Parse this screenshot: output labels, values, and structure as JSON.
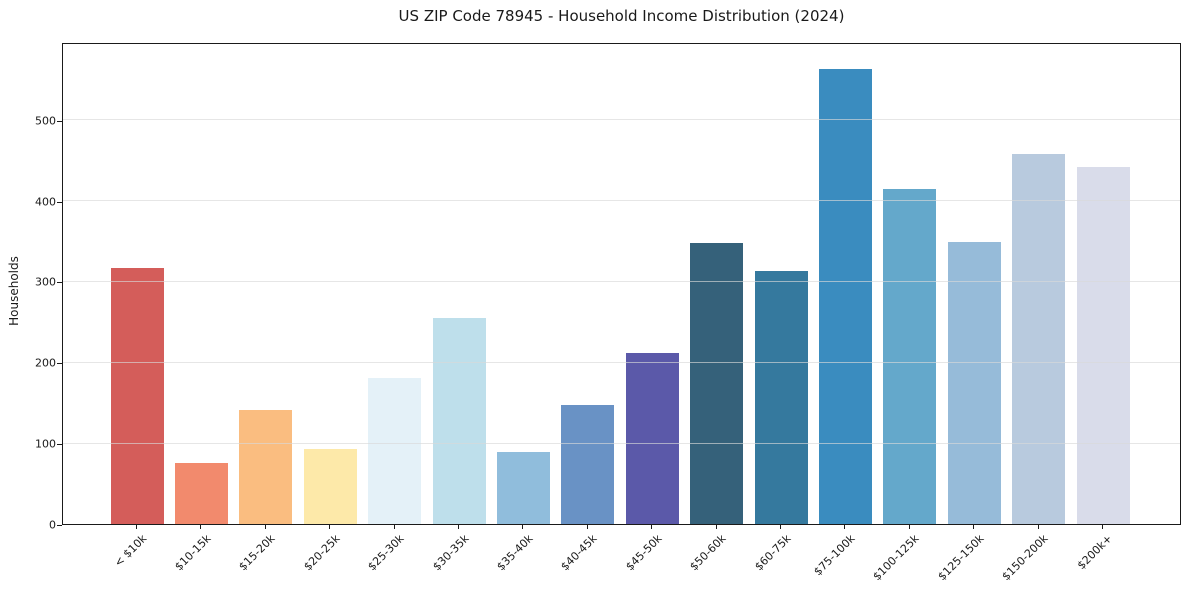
{
  "chart_data": {
    "type": "bar",
    "title": "US ZIP Code 78945 - Household Income Distribution (2024)",
    "xlabel": "",
    "ylabel": "Households",
    "categories": [
      "< $10k",
      "$10-15k",
      "$15-20k",
      "$20-25k",
      "$25-30k",
      "$30-35k",
      "$35-40k",
      "$40-45k",
      "$45-50k",
      "$50-60k",
      "$60-75k",
      "$75-100k",
      "$100-125k",
      "$125-150k",
      "$150-200k",
      "$200k+"
    ],
    "values": [
      317,
      76,
      141,
      93,
      181,
      255,
      89,
      147,
      211,
      347,
      313,
      563,
      414,
      349,
      457,
      442
    ],
    "bar_colors": [
      "#d45d5a",
      "#f28a6d",
      "#fabd80",
      "#fde9a9",
      "#e4f1f8",
      "#bedfeb",
      "#90bddc",
      "#6992c5",
      "#5b59a9",
      "#35617a",
      "#35799e",
      "#3a8cbf",
      "#64a8cb",
      "#96bbd9",
      "#b8cade",
      "#d9dcea"
    ],
    "yticks": [
      0,
      100,
      200,
      300,
      400,
      500
    ],
    "ylim": [
      0,
      596
    ],
    "grid": "horizontal",
    "legend": "none",
    "background_color": "#ffffff",
    "spine_color": "#1a1a1a",
    "grid_color": "#e9e9e9"
  }
}
